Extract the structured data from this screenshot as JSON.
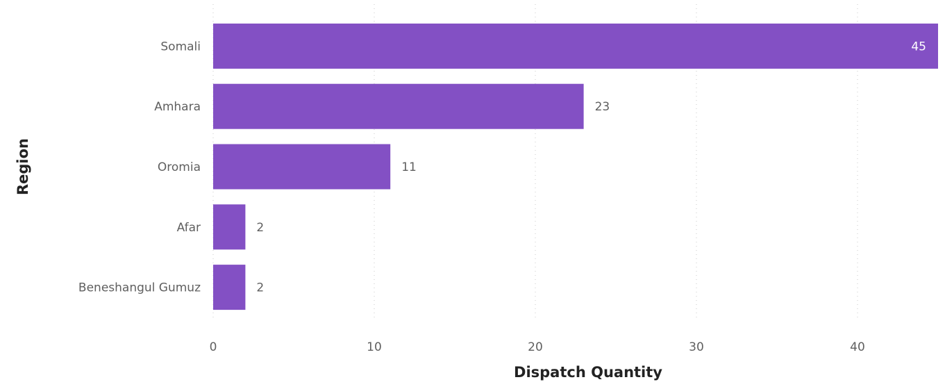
{
  "chart_data": {
    "type": "bar",
    "orientation": "horizontal",
    "title": "",
    "xlabel": "Dispatch Quantity",
    "ylabel": "Region",
    "categories": [
      "Somali",
      "Amhara",
      "Oromia",
      "Afar",
      "Beneshangul Gumuz"
    ],
    "values": [
      45,
      23,
      11,
      2,
      2
    ],
    "data_labels": [
      "45",
      "23",
      "11",
      "2",
      "2"
    ],
    "xlim": [
      0,
      45
    ],
    "xticks": [
      0,
      10,
      20,
      30,
      40
    ],
    "xtick_labels": [
      "0",
      "10",
      "20",
      "30",
      "40"
    ],
    "grid": "vertical dotted",
    "legend": "none",
    "colors": {
      "bar": "#8350c4",
      "label_outside": "#5f5f5f",
      "label_inside": "#ffffff",
      "gridline": "#c8c8c8"
    }
  }
}
